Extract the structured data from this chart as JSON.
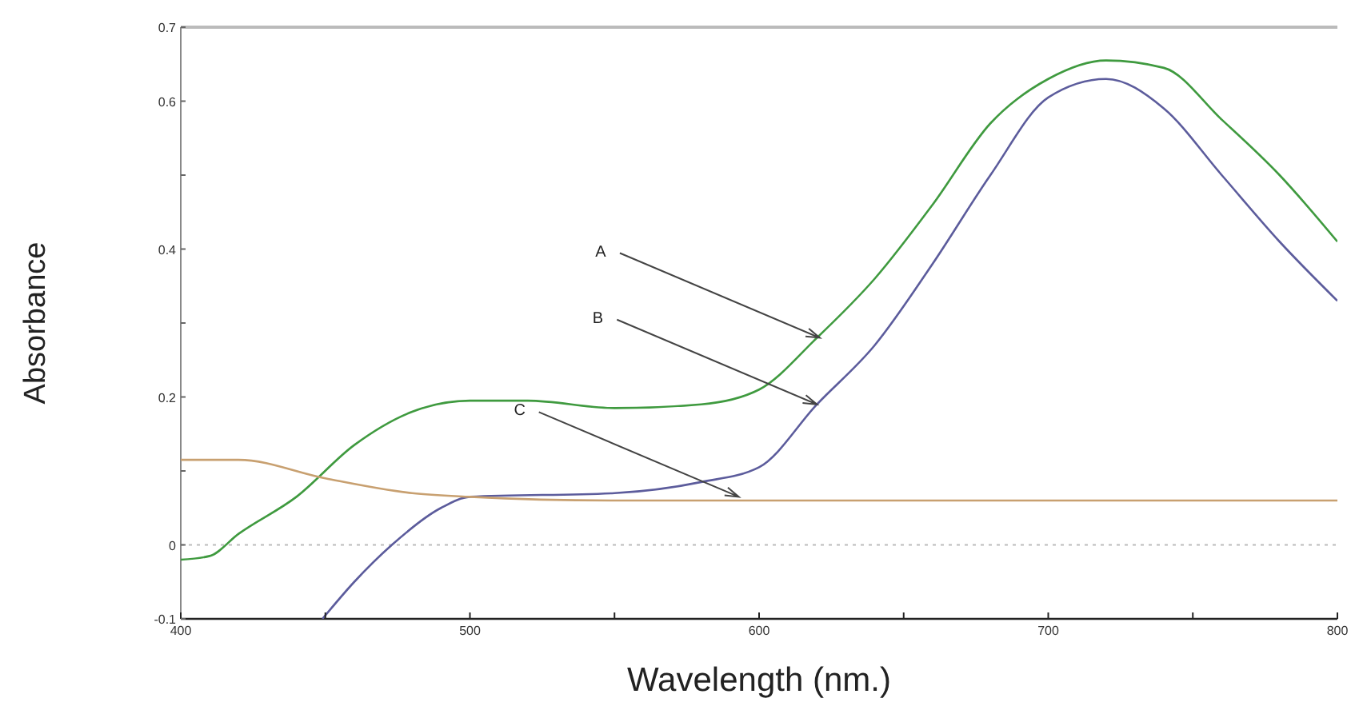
{
  "chart_data": {
    "type": "line",
    "xlabel": "Wavelength (nm.)",
    "ylabel": "Absorbance",
    "xlim": [
      400,
      800
    ],
    "xticks": [
      400,
      500,
      600,
      700,
      800,
      {
        "value": 450,
        "label": null
      },
      {
        "value": 550,
        "label": null
      },
      {
        "value": 650,
        "label": null
      },
      {
        "value": 750,
        "label": null
      }
    ],
    "ylim": [
      -0.1,
      0.7
    ],
    "yticks": [
      -0.1,
      0,
      0.2,
      0.4,
      0.6,
      0.7,
      {
        "value": 0.1,
        "label": null
      },
      {
        "value": 0.3,
        "label": null
      },
      {
        "value": 0.5,
        "label": null
      }
    ],
    "grid": false,
    "marker": "none",
    "line_style": "solid",
    "ref_lines": [
      {
        "axis": "y",
        "value": 0,
        "color": "#bbbbbb",
        "line_style": "dotted"
      }
    ],
    "series": [
      {
        "color": "#3f9a3f",
        "x": [
          400,
          410,
          420,
          440,
          460,
          480,
          500,
          520,
          550,
          580,
          600,
          620,
          640,
          660,
          680,
          700,
          720,
          740,
          760,
          780,
          800
        ],
        "values": [
          -0.02,
          -0.015,
          0.015,
          0.065,
          0.135,
          0.18,
          0.195,
          0.195,
          0.185,
          0.19,
          0.21,
          0.28,
          0.36,
          0.46,
          0.57,
          0.63,
          0.655,
          0.645,
          0.575,
          0.5,
          0.41
        ]
      },
      {
        "color": "#5c5c9c",
        "x": [
          449,
          460,
          473,
          490,
          500,
          550,
          580,
          600,
          620,
          640,
          660,
          680,
          700,
          720,
          740,
          760,
          780,
          800
        ],
        "values": [
          -0.1,
          -0.05,
          0,
          0.05,
          0.065,
          0.07,
          0.085,
          0.105,
          0.19,
          0.27,
          0.38,
          0.5,
          0.605,
          0.63,
          0.59,
          0.5,
          0.41,
          0.33
        ]
      },
      {
        "color": "#c8a070",
        "x": [
          400,
          420,
          450,
          480,
          500,
          550,
          600,
          700,
          800
        ],
        "values": [
          0.115,
          0.115,
          0.09,
          0.07,
          0.065,
          0.06,
          0.06,
          0.06,
          0.06
        ]
      }
    ],
    "annotations": [
      {
        "text": "A",
        "x": 621,
        "y": 0.28
      },
      {
        "text": "B",
        "x": 620,
        "y": 0.19
      },
      {
        "text": "C",
        "x": 593,
        "y": 0.065
      }
    ]
  }
}
